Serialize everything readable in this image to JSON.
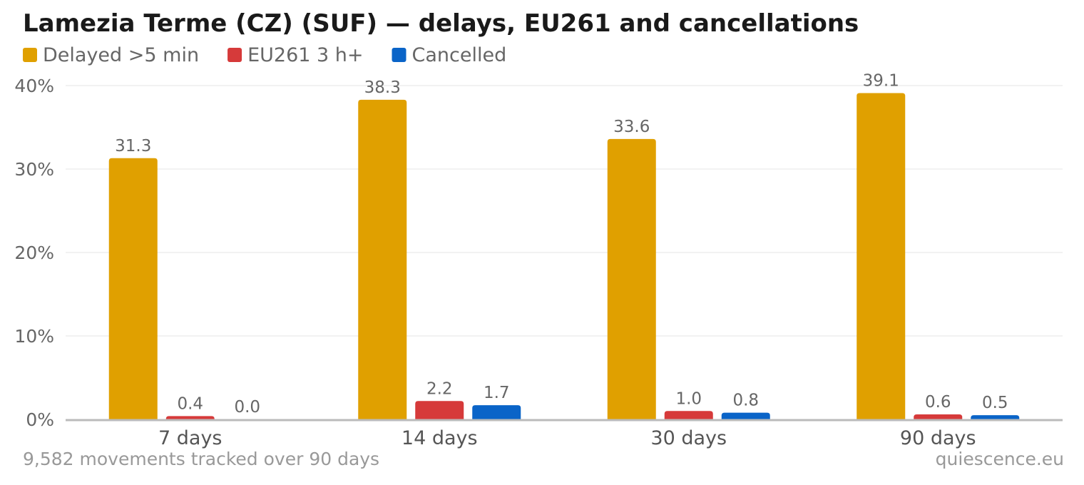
{
  "footer": {
    "left": "9,582 movements tracked over 90 days",
    "right": "quiescence.eu"
  },
  "chart_data": {
    "type": "bar",
    "title": "Lamezia Terme (CZ) (SUF) — delays, EU261 and cancellations",
    "xlabel": "",
    "ylabel": "",
    "categories": [
      "7 days",
      "14 days",
      "30 days",
      "90 days"
    ],
    "series": [
      {
        "name": "Delayed >5 min",
        "color": "#e0a000",
        "values": [
          31.3,
          38.3,
          33.6,
          39.1
        ],
        "labels": [
          "31.3",
          "38.3",
          "33.6",
          "39.1"
        ]
      },
      {
        "name": "EU261 3 h+",
        "color": "#d63a3a",
        "values": [
          0.4,
          2.2,
          1.0,
          0.6
        ],
        "labels": [
          "0.4",
          "2.2",
          "1.0",
          "0.6"
        ]
      },
      {
        "name": "Cancelled",
        "color": "#0a64c8",
        "values": [
          0.0,
          1.7,
          0.8,
          0.5
        ],
        "labels": [
          "0.0",
          "1.7",
          "0.8",
          "0.5"
        ]
      }
    ],
    "ylim": [
      0,
      40
    ],
    "yticks": [
      0,
      10,
      20,
      30,
      40
    ],
    "ytick_labels": [
      "0%",
      "10%",
      "20%",
      "30%",
      "40%"
    ],
    "grid": true,
    "legend_position": "top-left"
  }
}
